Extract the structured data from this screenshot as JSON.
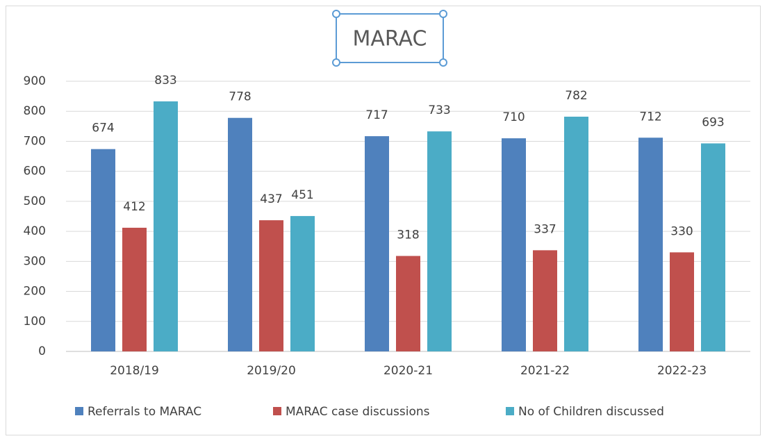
{
  "chart_data": {
    "type": "bar",
    "title": "MARAC",
    "categories": [
      "2018/19",
      "2019/20",
      "2020-21",
      "2021-22",
      "2022-23"
    ],
    "series": [
      {
        "name": "Referrals to MARAC",
        "color": "#4f81bd",
        "values": [
          674,
          778,
          717,
          710,
          712
        ]
      },
      {
        "name": "MARAC case discussions",
        "color": "#c0504d",
        "values": [
          412,
          437,
          318,
          337,
          330
        ]
      },
      {
        "name": "No of Children discussed",
        "color": "#4bacc6",
        "values": [
          833,
          451,
          733,
          782,
          693
        ]
      }
    ],
    "ylim": [
      0,
      900
    ],
    "yticks": [
      0,
      100,
      200,
      300,
      400,
      500,
      600,
      700,
      800,
      900
    ],
    "grid": true,
    "legend": "bottom"
  }
}
